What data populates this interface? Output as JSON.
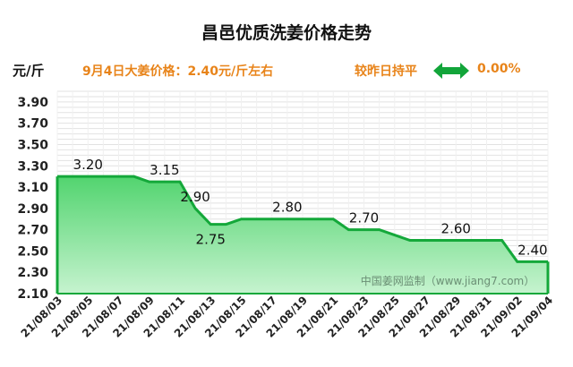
{
  "header": {
    "title": "昌邑优质洗姜价格走势",
    "unit": "元/斤",
    "price_text": "9月4日大姜价格：2.40元/斤左右",
    "compare_text": "较昨日持平",
    "change_text": "0.00%",
    "arrow_icon": "double-arrow-icon",
    "arrow_color": "#12a53a"
  },
  "chart_data": {
    "type": "area",
    "x": [
      "21/08/03",
      "21/08/04",
      "21/08/05",
      "21/08/06",
      "21/08/07",
      "21/08/08",
      "21/08/09",
      "21/08/10",
      "21/08/11",
      "21/08/12",
      "21/08/13",
      "21/08/14",
      "21/08/15",
      "21/08/16",
      "21/08/17",
      "21/08/18",
      "21/08/19",
      "21/08/20",
      "21/08/21",
      "21/08/22",
      "21/08/23",
      "21/08/24",
      "21/08/25",
      "21/08/26",
      "21/08/27",
      "21/08/28",
      "21/08/29",
      "21/08/30",
      "21/08/31",
      "21/09/01",
      "21/09/02",
      "21/09/03",
      "21/09/04"
    ],
    "values": [
      3.2,
      3.2,
      3.2,
      3.2,
      3.2,
      3.2,
      3.15,
      3.15,
      3.15,
      2.9,
      2.75,
      2.75,
      2.8,
      2.8,
      2.8,
      2.8,
      2.8,
      2.8,
      2.8,
      2.7,
      2.7,
      2.7,
      2.65,
      2.6,
      2.6,
      2.6,
      2.6,
      2.6,
      2.6,
      2.6,
      2.4,
      2.4,
      2.4
    ],
    "x_tick_labels": [
      "21/08/03",
      "21/08/05",
      "21/08/07",
      "21/08/09",
      "21/08/11",
      "21/08/13",
      "21/08/15",
      "21/08/17",
      "21/08/19",
      "21/08/21",
      "21/08/23",
      "21/08/25",
      "21/08/27",
      "21/08/29",
      "21/08/31",
      "21/09/02",
      "21/09/04"
    ],
    "y_ticks": [
      2.1,
      2.3,
      2.5,
      2.7,
      2.9,
      3.1,
      3.3,
      3.5,
      3.7,
      3.9
    ],
    "ylim": [
      2.1,
      4.0
    ],
    "data_labels": [
      {
        "index": 2,
        "text": "3.20"
      },
      {
        "index": 7,
        "text": "3.15"
      },
      {
        "index": 9,
        "text": "2.90"
      },
      {
        "index": 10,
        "text": "2.75",
        "position": "below"
      },
      {
        "index": 15,
        "text": "2.80"
      },
      {
        "index": 20,
        "text": "2.70"
      },
      {
        "index": 26,
        "text": "2.60"
      },
      {
        "index": 31,
        "text": "2.40"
      }
    ],
    "grid": true,
    "watermark": "中国姜网监制（www.jiang7.com）",
    "colors": {
      "line": "#14a83a",
      "fill_top": "#52d46f",
      "fill_bottom": "#c6f3cf",
      "grid": "#e2e2e2"
    }
  }
}
